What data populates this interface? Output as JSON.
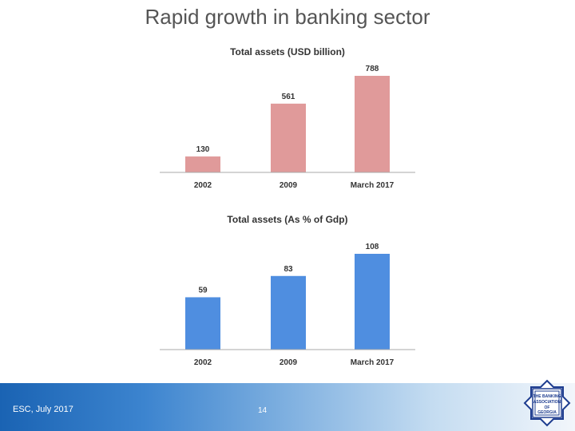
{
  "slide": {
    "title": "Rapid growth in banking sector",
    "footer_left": "ESC, July 2017",
    "page_number": "14"
  },
  "colors": {
    "usd_bar": "#e09a9a",
    "gdp_bar": "#4f8ee0",
    "axis": "#aaaaaa",
    "footer_blue": "#1a63b3"
  },
  "logo": {
    "name": "the-banking-association-logo",
    "text_lines": [
      "THE BANKING",
      "ASSOCIATION",
      "OF",
      "GEORGIA"
    ]
  },
  "chart_data": [
    {
      "type": "bar",
      "title": "Total assets (USD billion)",
      "categories": [
        "2002",
        "2009",
        "March 2017"
      ],
      "values": [
        130,
        561,
        788
      ],
      "data_labels": [
        "130",
        "561",
        "788"
      ],
      "ylim": [
        0,
        788
      ],
      "grid": false,
      "color": "#e09a9a"
    },
    {
      "type": "bar",
      "title": "Total assets (As % of Gdp)",
      "categories": [
        "2002",
        "2009",
        "March 2017"
      ],
      "values": [
        59,
        83,
        108
      ],
      "data_labels": [
        "59",
        "83",
        "108"
      ],
      "ylim": [
        0,
        108
      ],
      "grid": false,
      "color": "#4f8ee0"
    }
  ]
}
